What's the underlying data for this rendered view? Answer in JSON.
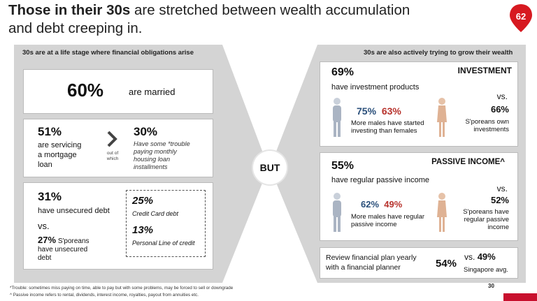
{
  "title": {
    "bold": "Those in their 30s",
    "rest1": " are stretched between wealth accumulation",
    "rest2": "and debt creeping in."
  },
  "badge": {
    "number": "62",
    "color": "#d71920"
  },
  "left": {
    "header": "30s are at a life stage where financial obligations arise",
    "married": {
      "value": "60%",
      "label": "are married"
    },
    "mortgage": {
      "value": "51%",
      "l1": "are servicing",
      "l2": "a mortgage",
      "l3": "loan",
      "arrow_label_1": "out of",
      "arrow_label_2": "which",
      "trouble_value": "30%",
      "t1": "Have some *trouble",
      "t2": "paying monthly",
      "t3": "housing loan",
      "t4": "installments"
    },
    "unsecured": {
      "value": "31%",
      "label": "have unsecured debt",
      "vs": "vs.",
      "sp_value": "27%",
      "sp1": "S'poreans",
      "sp2": "have unsecured",
      "sp3": "debt",
      "cc_value": "25%",
      "cc_label": "Credit Card debt",
      "pl_value": "13%",
      "pl_label": "Personal Line of credit"
    }
  },
  "but": "BUT",
  "right": {
    "header": "30s are also actively trying to grow their wealth",
    "investment": {
      "heading": "INVESTMENT",
      "value": "69%",
      "label": "have investment products",
      "male": "75%",
      "female": "63%",
      "d1": "More males have started",
      "d2": "investing than females",
      "vs": "vs.",
      "sp_value": "66%",
      "sp1": "S'poreans own",
      "sp2": "investments"
    },
    "passive": {
      "heading": "PASSIVE INCOME^",
      "value": "55%",
      "label": "have regular passive income",
      "male": "62%",
      "female": "49%",
      "d1": "More males have regular",
      "d2": "passive income",
      "vs": "vs.",
      "sp_value": "52%",
      "sp1": "S'poreans have",
      "sp2": "regular passive",
      "sp3": "income"
    },
    "review": {
      "l1": "Review financial plan yearly",
      "l2": "with a financial planner",
      "value": "54%",
      "vs": "vs.",
      "sg_value": "49%",
      "sg_label": "Singapore avg."
    }
  },
  "footnotes": {
    "f1": "*Trouble: sometimes miss paying on time, able to pay but with some problems, may be forced to sell or downgrade",
    "f2": "^ Passive income refers to rental, dividends, interest income, royalties, payout from annuities etc."
  },
  "page_number": "30"
}
